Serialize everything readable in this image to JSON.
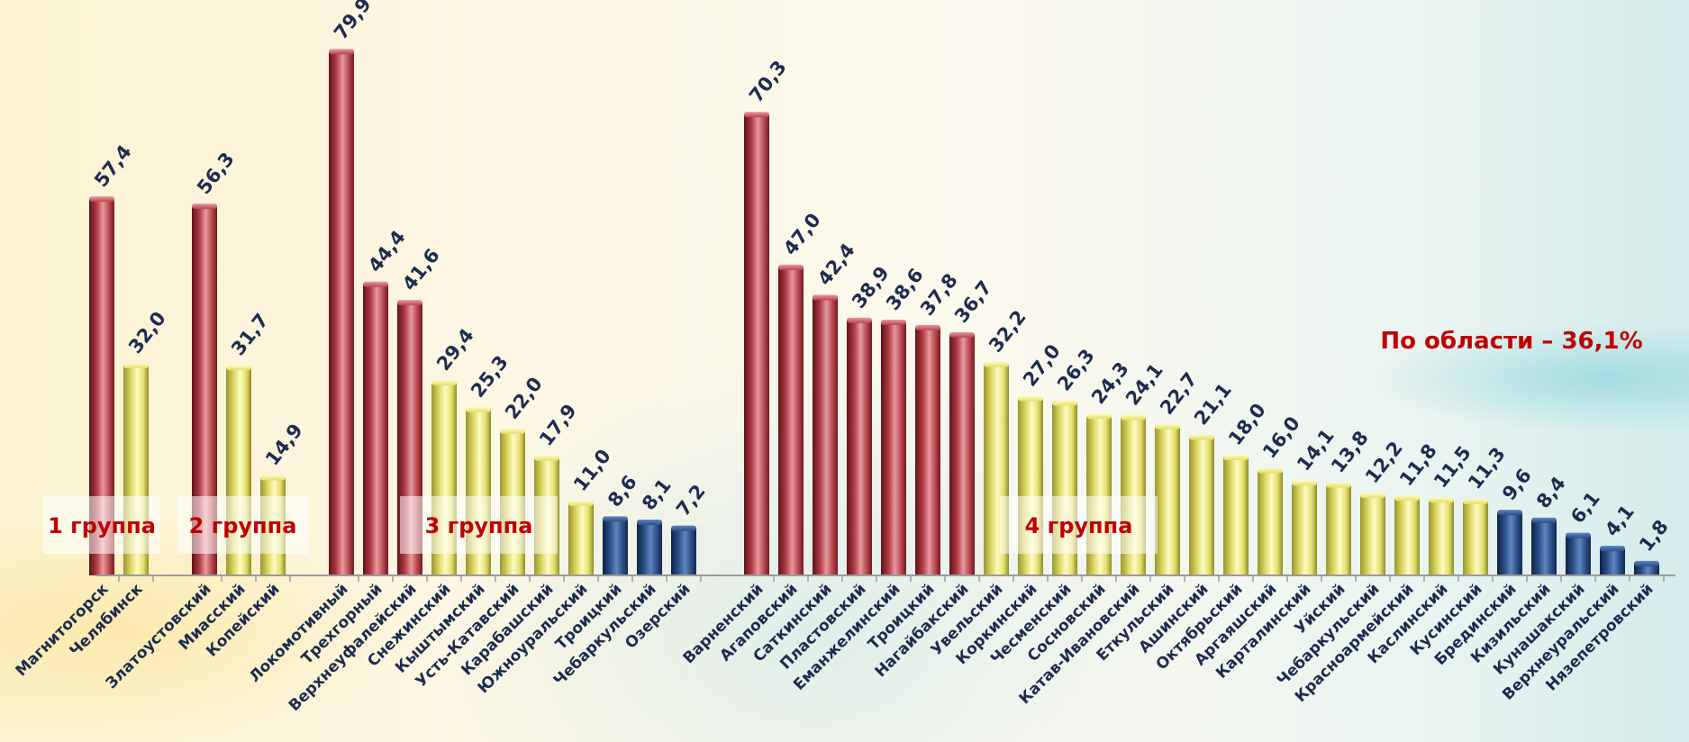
{
  "chart_data": {
    "type": "bar",
    "ylim": [
      0,
      85
    ],
    "annotation": "По области – 36,1%",
    "colors": {
      "red": "#c2474f",
      "yellow": "#e6e16a",
      "blue": "#2a4a80"
    },
    "groups": [
      {
        "label": "1 группа",
        "bars": [
          {
            "name": "Магнитогорск",
            "value": 57.4,
            "label": "57,4",
            "color": "red"
          },
          {
            "name": "Челябинск",
            "value": 32.0,
            "label": "32,0",
            "color": "yellow"
          }
        ]
      },
      {
        "label": "2 группа",
        "bars": [
          {
            "name": "Златоустовский",
            "value": 56.3,
            "label": "56,3",
            "color": "red"
          },
          {
            "name": "Миасский",
            "value": 31.7,
            "label": "31,7",
            "color": "yellow"
          },
          {
            "name": "Копейский",
            "value": 14.9,
            "label": "14,9",
            "color": "yellow"
          }
        ]
      },
      {
        "label": "3 группа",
        "bars": [
          {
            "name": "Локомотивный",
            "value": 79.9,
            "label": "79,9",
            "color": "red"
          },
          {
            "name": "Трехгорный",
            "value": 44.4,
            "label": "44,4",
            "color": "red"
          },
          {
            "name": "Верхнеуфалейский",
            "value": 41.6,
            "label": "41,6",
            "color": "red"
          },
          {
            "name": "Снежинский",
            "value": 29.4,
            "label": "29,4",
            "color": "yellow"
          },
          {
            "name": "Кыштымский",
            "value": 25.3,
            "label": "25,3",
            "color": "yellow"
          },
          {
            "name": "Усть-Катавский",
            "value": 22.0,
            "label": "22,0",
            "color": "yellow"
          },
          {
            "name": "Карабашский",
            "value": 17.9,
            "label": "17,9",
            "color": "yellow"
          },
          {
            "name": "Южноуральский",
            "value": 11.0,
            "label": "11,0",
            "color": "yellow"
          },
          {
            "name": "Троицкий",
            "value": 8.6,
            "label": "8,6",
            "color": "blue"
          },
          {
            "name": "Чебаркульский",
            "value": 8.1,
            "label": "8,1",
            "color": "blue"
          },
          {
            "name": "Озерский",
            "value": 7.2,
            "label": "7,2",
            "color": "blue"
          }
        ]
      },
      {
        "label": "4 группа",
        "bars": [
          {
            "name": "Варненский",
            "value": 70.3,
            "label": "70,3",
            "color": "red"
          },
          {
            "name": "Агаповский",
            "value": 47.0,
            "label": "47,0",
            "color": "red"
          },
          {
            "name": "Саткинский",
            "value": 42.4,
            "label": "42,4",
            "color": "red"
          },
          {
            "name": "Пластовский",
            "value": 38.9,
            "label": "38,9",
            "color": "red"
          },
          {
            "name": "Еманжелинский",
            "value": 38.6,
            "label": "38,6",
            "color": "red"
          },
          {
            "name": "Троицкий",
            "value": 37.8,
            "label": "37,8",
            "color": "red"
          },
          {
            "name": "Нагайбакский",
            "value": 36.7,
            "label": "36,7",
            "color": "red"
          },
          {
            "name": "Увельский",
            "value": 32.2,
            "label": "32,2",
            "color": "yellow"
          },
          {
            "name": "Коркинский",
            "value": 27.0,
            "label": "27,0",
            "color": "yellow"
          },
          {
            "name": "Чесменский",
            "value": 26.3,
            "label": "26,3",
            "color": "yellow"
          },
          {
            "name": "Сосновский",
            "value": 24.3,
            "label": "24,3",
            "color": "yellow"
          },
          {
            "name": "Катав-Ивановский",
            "value": 24.1,
            "label": "24,1",
            "color": "yellow"
          },
          {
            "name": "Еткульский",
            "value": 22.7,
            "label": "22,7",
            "color": "yellow"
          },
          {
            "name": "Ашинский",
            "value": 21.1,
            "label": "21,1",
            "color": "yellow"
          },
          {
            "name": "Октябрьский",
            "value": 18.0,
            "label": "18,0",
            "color": "yellow"
          },
          {
            "name": "Аргаяшский",
            "value": 16.0,
            "label": "16,0",
            "color": "yellow"
          },
          {
            "name": "Карталинский",
            "value": 14.1,
            "label": "14,1",
            "color": "yellow"
          },
          {
            "name": "Уйский",
            "value": 13.8,
            "label": "13,8",
            "color": "yellow"
          },
          {
            "name": "Чебаркульский",
            "value": 12.2,
            "label": "12,2",
            "color": "yellow"
          },
          {
            "name": "Красноармейский",
            "value": 11.8,
            "label": "11,8",
            "color": "yellow"
          },
          {
            "name": "Каслинский",
            "value": 11.5,
            "label": "11,5",
            "color": "yellow"
          },
          {
            "name": "Кусинский",
            "value": 11.3,
            "label": "11,3",
            "color": "yellow"
          },
          {
            "name": "Брединский",
            "value": 9.6,
            "label": "9,6",
            "color": "blue"
          },
          {
            "name": "Кизильский",
            "value": 8.4,
            "label": "8,4",
            "color": "blue"
          },
          {
            "name": "Кунашакский",
            "value": 6.1,
            "label": "6,1",
            "color": "blue"
          },
          {
            "name": "Верхнеуральский",
            "value": 4.1,
            "label": "4,1",
            "color": "blue"
          },
          {
            "name": "Нязепетровский",
            "value": 1.8,
            "label": "1,8",
            "color": "blue"
          }
        ]
      }
    ]
  }
}
